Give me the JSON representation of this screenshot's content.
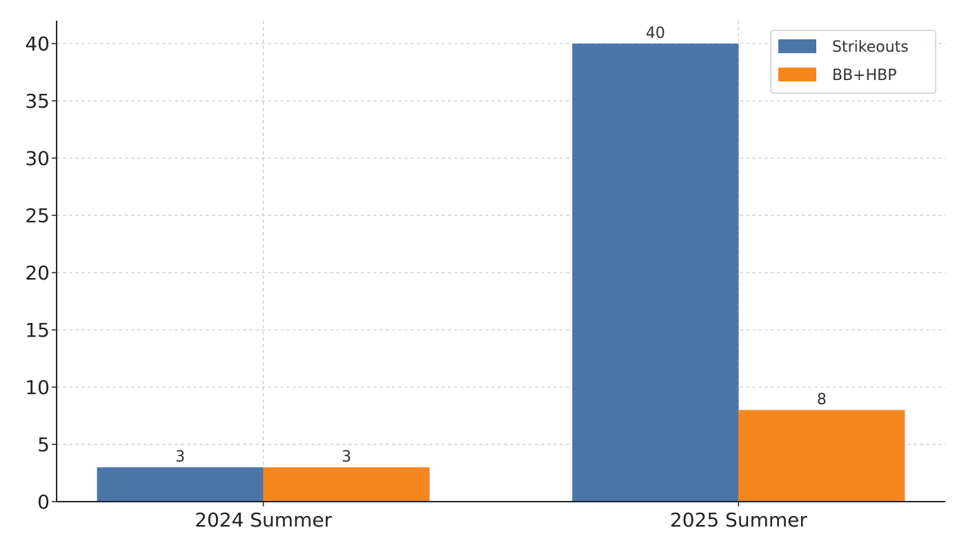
{
  "chart_data": {
    "type": "bar",
    "title": "",
    "xlabel": "",
    "ylabel": "",
    "categories": [
      "2024 Summer",
      "2025 Summer"
    ],
    "series": [
      {
        "name": "Strikeouts",
        "values": [
          3,
          40
        ],
        "color": "#4a77a8"
      },
      {
        "name": "BB+HBP",
        "values": [
          3,
          8
        ],
        "color": "#f5871f"
      }
    ],
    "ylim": [
      0,
      42
    ],
    "yticks": [
      0,
      5,
      10,
      15,
      20,
      25,
      30,
      35,
      40
    ],
    "grid": true,
    "legend_position": "top-right",
    "data_labels": true
  }
}
